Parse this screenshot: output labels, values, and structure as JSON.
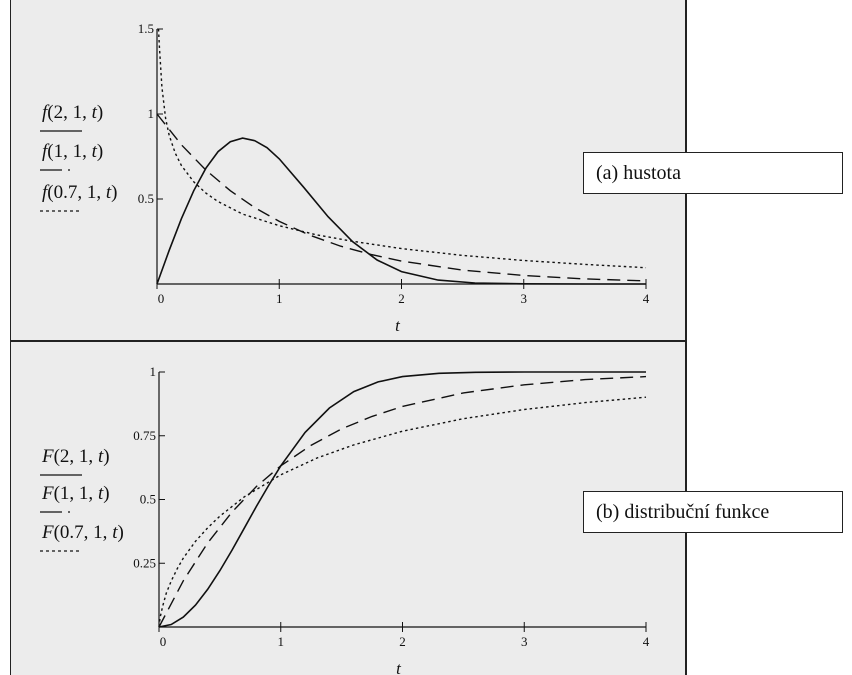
{
  "chart_data": [
    {
      "type": "line",
      "id": "top",
      "callout": "(a) hustota",
      "xlabel": "t",
      "xlim": [
        0,
        4
      ],
      "ylim": [
        0,
        1.5
      ],
      "xticks": [
        0,
        1,
        2,
        3,
        4
      ],
      "yticks": [
        0,
        0.5,
        1,
        1.5
      ],
      "ytick_labels": [
        "",
        "0.5",
        "1",
        "1.5"
      ],
      "series": [
        {
          "name": "f(2, 1, t)",
          "style": "solid",
          "x": [
            0,
            0.1,
            0.2,
            0.3,
            0.4,
            0.5,
            0.6,
            0.7,
            0.8,
            0.9,
            1.0,
            1.2,
            1.4,
            1.6,
            1.8,
            2.0,
            2.3,
            2.6,
            3.0,
            3.5,
            4.0
          ],
          "y": [
            0,
            0.198,
            0.384,
            0.548,
            0.681,
            0.779,
            0.837,
            0.858,
            0.843,
            0.802,
            0.736,
            0.569,
            0.396,
            0.249,
            0.141,
            0.073,
            0.023,
            0.006,
            0.001,
            0,
            0
          ]
        },
        {
          "name": "f(1, 1, t)",
          "style": "dashed",
          "x": [
            0,
            0.2,
            0.4,
            0.6,
            0.8,
            1.0,
            1.25,
            1.5,
            1.75,
            2.0,
            2.5,
            3.0,
            3.5,
            4.0
          ],
          "y": [
            1,
            0.819,
            0.67,
            0.549,
            0.449,
            0.368,
            0.287,
            0.223,
            0.174,
            0.135,
            0.082,
            0.05,
            0.03,
            0.018
          ]
        },
        {
          "name": "f(0.7, 1, t)",
          "style": "dotted",
          "x": [
            0.012,
            0.02,
            0.04,
            0.07,
            0.1,
            0.15,
            0.2,
            0.3,
            0.4,
            0.5,
            0.7,
            1.0,
            1.3,
            1.6,
            2.0,
            2.5,
            3.0,
            3.5,
            4.0
          ],
          "y": [
            1.5,
            1.396,
            1.159,
            0.974,
            0.874,
            0.769,
            0.697,
            0.601,
            0.535,
            0.485,
            0.411,
            0.343,
            0.29,
            0.251,
            0.208,
            0.168,
            0.138,
            0.115,
            0.096
          ]
        }
      ]
    },
    {
      "type": "line",
      "id": "bottom",
      "callout": "(b) distribuční funkce",
      "xlabel": "t",
      "xlim": [
        0,
        4
      ],
      "ylim": [
        0,
        1
      ],
      "xticks": [
        0,
        1,
        2,
        3,
        4
      ],
      "yticks": [
        0,
        0.25,
        0.5,
        0.75,
        1
      ],
      "ytick_labels": [
        "",
        "0.25",
        "0.5",
        "0.75",
        "1"
      ],
      "series": [
        {
          "name": "F(2, 1, t)",
          "style": "solid",
          "x": [
            0,
            0.1,
            0.2,
            0.3,
            0.4,
            0.5,
            0.6,
            0.7,
            0.8,
            0.9,
            1.0,
            1.2,
            1.4,
            1.6,
            1.8,
            2.0,
            2.3,
            2.6,
            3.0,
            3.5,
            4.0
          ],
          "y": [
            0,
            0.01,
            0.039,
            0.086,
            0.148,
            0.221,
            0.302,
            0.387,
            0.473,
            0.555,
            0.632,
            0.763,
            0.859,
            0.923,
            0.961,
            0.982,
            0.995,
            0.999,
            1.0,
            1.0,
            1.0
          ]
        },
        {
          "name": "F(1, 1, t)",
          "style": "dashed",
          "x": [
            0,
            0.2,
            0.4,
            0.6,
            0.8,
            1.0,
            1.25,
            1.5,
            1.75,
            2.0,
            2.5,
            3.0,
            3.5,
            4.0
          ],
          "y": [
            0,
            0.181,
            0.33,
            0.451,
            0.551,
            0.632,
            0.713,
            0.777,
            0.826,
            0.865,
            0.918,
            0.95,
            0.97,
            0.982
          ]
        },
        {
          "name": "F(0.7, 1, t)",
          "style": "dotted",
          "x": [
            0,
            0.01,
            0.03,
            0.06,
            0.1,
            0.15,
            0.2,
            0.3,
            0.4,
            0.5,
            0.7,
            1.0,
            1.3,
            1.6,
            2.0,
            2.5,
            3.0,
            3.5,
            4.0
          ],
          "y": [
            0,
            0.039,
            0.082,
            0.133,
            0.18,
            0.229,
            0.27,
            0.336,
            0.389,
            0.435,
            0.51,
            0.597,
            0.663,
            0.714,
            0.768,
            0.817,
            0.853,
            0.88,
            0.901
          ]
        }
      ]
    }
  ]
}
